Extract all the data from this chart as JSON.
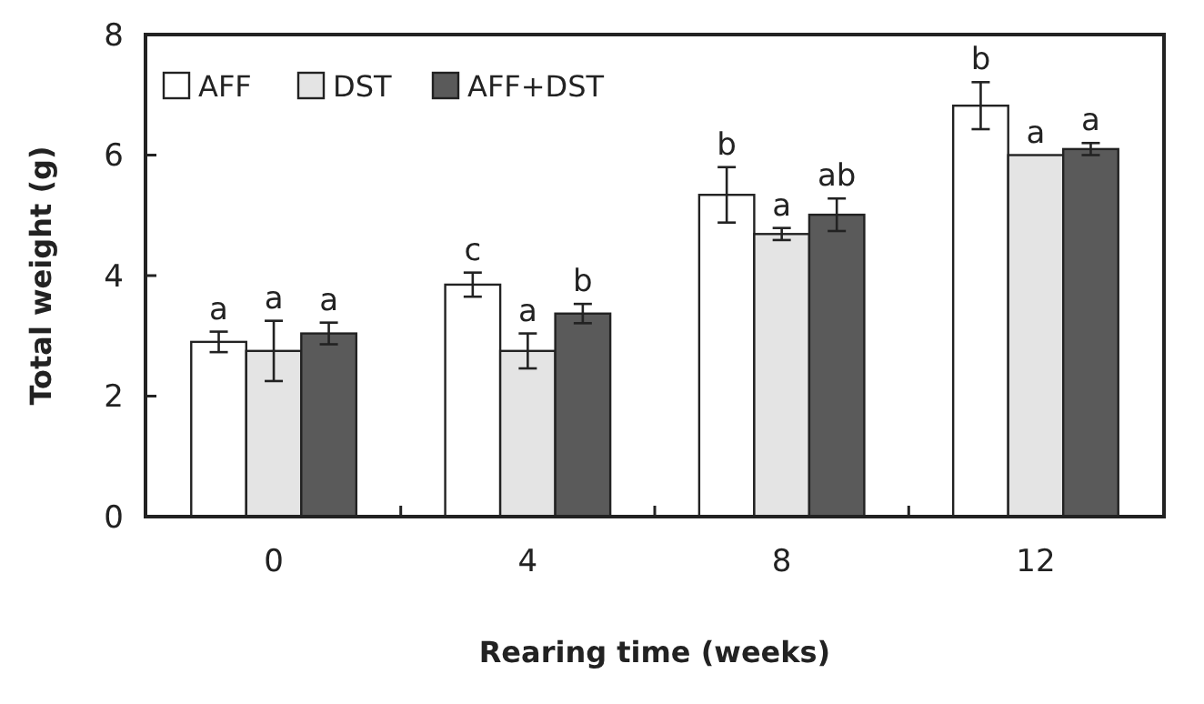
{
  "chart_data": {
    "type": "bar",
    "xlabel": "Rearing time (weeks)",
    "ylabel": "Total weight (g)",
    "categories": [
      "0",
      "4",
      "8",
      "12"
    ],
    "ylim": [
      0,
      8
    ],
    "yticks": [
      0,
      2,
      4,
      6,
      8
    ],
    "grid": false,
    "legend": "top left",
    "series": [
      {
        "name": "AFF",
        "color": "#ffffff",
        "values": [
          2.9,
          3.85,
          5.34,
          6.82
        ],
        "errors": [
          0.17,
          0.2,
          0.46,
          0.39
        ],
        "value_labels": [
          "a",
          "c",
          "b",
          "b"
        ]
      },
      {
        "name": "DST",
        "color": "#e4e4e4",
        "values": [
          2.75,
          2.75,
          4.69,
          6.0
        ],
        "errors": [
          0.5,
          0.29,
          0.1,
          null
        ],
        "value_labels": [
          "a",
          "a",
          "a",
          "a"
        ]
      },
      {
        "name": "AFF+DST",
        "color": "#5a5a5a",
        "values": [
          3.04,
          3.37,
          5.01,
          6.1
        ],
        "errors": [
          0.18,
          0.16,
          0.27,
          0.1
        ],
        "value_labels": [
          "a",
          "b",
          "ab",
          "a"
        ]
      }
    ]
  }
}
